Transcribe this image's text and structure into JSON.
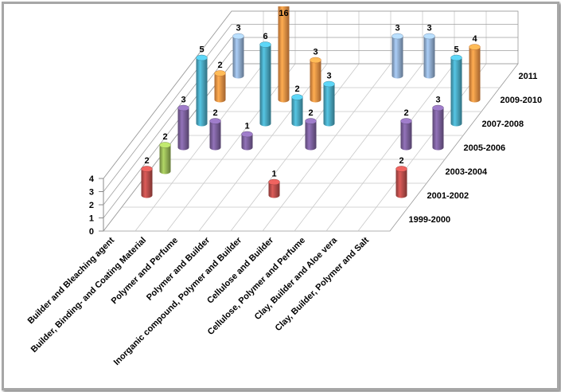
{
  "chart_data": {
    "type": "bar3d",
    "categories": [
      "Builder and Bleaching agent",
      "Builder, Binding- and Coating Material",
      "Polymer and Perfume",
      "Polymer and Builder",
      "Inorganic compound, Polymer and Builder",
      "Cellulose and Builder",
      "Cellulose, Polymer and Perfume",
      "Clay, Builder and Aloe vera",
      "Clay, Builder, Polymer and Salt"
    ],
    "series": [
      {
        "name": "1999-2000",
        "color": "#4f81bd",
        "values": [
          null,
          null,
          null,
          null,
          null,
          null,
          null,
          null,
          null
        ]
      },
      {
        "name": "2001-2002",
        "color": "#c0504d",
        "values": [
          2,
          null,
          null,
          null,
          1,
          null,
          null,
          null,
          2
        ]
      },
      {
        "name": "2003-2004",
        "color": "#9bbb59",
        "values": [
          2,
          null,
          null,
          null,
          null,
          null,
          null,
          null,
          null
        ]
      },
      {
        "name": "2005-2006",
        "color": "#8064a2",
        "values": [
          3,
          2,
          1,
          null,
          2,
          null,
          null,
          2,
          3
        ]
      },
      {
        "name": "2007-2008",
        "color": "#4bacc6",
        "values": [
          5,
          null,
          6,
          2,
          3,
          null,
          null,
          null,
          5
        ]
      },
      {
        "name": "2009-2010",
        "color": "#f79646",
        "values": [
          2,
          null,
          16,
          3,
          null,
          null,
          null,
          null,
          4
        ]
      },
      {
        "name": "2011",
        "color": "#95b3d7",
        "values": [
          3,
          null,
          null,
          null,
          null,
          3,
          3,
          null,
          null
        ]
      }
    ],
    "ylim": [
      0,
      4
    ],
    "yticks": [
      0,
      1,
      2,
      3,
      4
    ],
    "grid": true
  }
}
